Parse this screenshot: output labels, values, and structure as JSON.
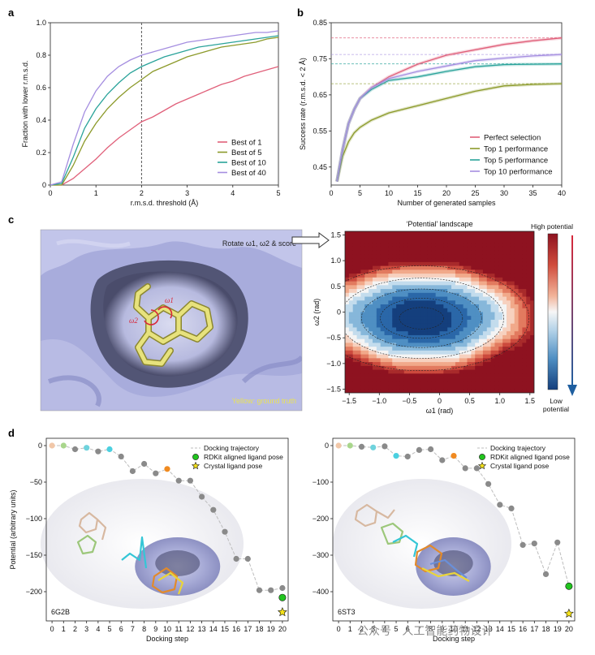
{
  "panels": {
    "a": "a",
    "b": "b",
    "c": "c",
    "d": "d"
  },
  "chart_data": [
    {
      "id": "a",
      "type": "line",
      "xlabel": "r.m.s.d. threshold (Å)",
      "ylabel": "Fraction with lower r.m.s.d.",
      "xlim": [
        0,
        5
      ],
      "ylim": [
        0,
        1.0
      ],
      "xticks": [
        "0",
        "1",
        "2",
        "3",
        "4",
        "5"
      ],
      "yticks": [
        "0",
        "0.2",
        "0.4",
        "0.6",
        "0.8",
        "1.0"
      ],
      "vline": 2,
      "legend_position": "bottom-right",
      "series": [
        {
          "name": "Best of 1",
          "color": "#e0607a",
          "x": [
            0,
            0.25,
            0.5,
            0.75,
            1.0,
            1.25,
            1.5,
            1.75,
            2.0,
            2.25,
            2.5,
            2.75,
            3.0,
            3.25,
            3.5,
            3.75,
            4.0,
            4.25,
            4.5,
            4.75,
            5.0
          ],
          "values": [
            0,
            0.0,
            0.04,
            0.1,
            0.16,
            0.23,
            0.29,
            0.34,
            0.39,
            0.42,
            0.46,
            0.5,
            0.53,
            0.56,
            0.59,
            0.62,
            0.64,
            0.67,
            0.69,
            0.71,
            0.73
          ]
        },
        {
          "name": "Best of 5",
          "color": "#8c9a2a",
          "x": [
            0,
            0.25,
            0.5,
            0.75,
            1.0,
            1.25,
            1.5,
            1.75,
            2.0,
            2.25,
            2.5,
            2.75,
            3.0,
            3.25,
            3.5,
            3.75,
            4.0,
            4.25,
            4.5,
            4.75,
            5.0
          ],
          "values": [
            0,
            0.0,
            0.12,
            0.27,
            0.38,
            0.47,
            0.54,
            0.6,
            0.65,
            0.7,
            0.73,
            0.76,
            0.79,
            0.81,
            0.83,
            0.85,
            0.86,
            0.87,
            0.88,
            0.9,
            0.91
          ]
        },
        {
          "name": "Best of 10",
          "color": "#2aa39a",
          "x": [
            0,
            0.25,
            0.5,
            0.75,
            1.0,
            1.25,
            1.5,
            1.75,
            2.0,
            2.25,
            2.5,
            2.75,
            3.0,
            3.25,
            3.5,
            3.75,
            4.0,
            4.25,
            4.5,
            4.75,
            5.0
          ],
          "values": [
            0,
            0.01,
            0.17,
            0.35,
            0.47,
            0.56,
            0.63,
            0.69,
            0.73,
            0.76,
            0.79,
            0.81,
            0.83,
            0.85,
            0.86,
            0.87,
            0.88,
            0.89,
            0.9,
            0.91,
            0.92
          ]
        },
        {
          "name": "Best of 40",
          "color": "#a58ee0",
          "x": [
            0,
            0.25,
            0.5,
            0.75,
            1.0,
            1.25,
            1.5,
            1.75,
            2.0,
            2.25,
            2.5,
            2.75,
            3.0,
            3.25,
            3.5,
            3.75,
            4.0,
            4.25,
            4.5,
            4.75,
            5.0
          ],
          "values": [
            0,
            0.02,
            0.25,
            0.45,
            0.58,
            0.67,
            0.73,
            0.77,
            0.8,
            0.82,
            0.84,
            0.86,
            0.88,
            0.89,
            0.9,
            0.91,
            0.92,
            0.93,
            0.94,
            0.94,
            0.95
          ]
        }
      ]
    },
    {
      "id": "b",
      "type": "line",
      "xlabel": "Number of generated samples",
      "ylabel": "Success rate (r.m.s.d. < 2 Å)",
      "xlim": [
        0,
        40
      ],
      "ylim": [
        0.4,
        0.85
      ],
      "xticks": [
        "0",
        "5",
        "10",
        "15",
        "20",
        "25",
        "30",
        "35",
        "40"
      ],
      "yticks": [
        "0.45",
        "0.55",
        "0.65",
        "0.75",
        "0.85"
      ],
      "hlines": [
        {
          "y": 0.808,
          "color": "#e0607a"
        },
        {
          "y": 0.762,
          "color": "#a58ee0"
        },
        {
          "y": 0.736,
          "color": "#2aa39a"
        },
        {
          "y": 0.681,
          "color": "#8c9a2a"
        }
      ],
      "legend_position": "bottom-right",
      "series": [
        {
          "name": "Perfect selection",
          "color": "#e0607a",
          "x": [
            1,
            2,
            3,
            4,
            5,
            7,
            10,
            15,
            20,
            25,
            30,
            35,
            40
          ],
          "values": [
            0.41,
            0.5,
            0.57,
            0.61,
            0.64,
            0.67,
            0.7,
            0.735,
            0.76,
            0.775,
            0.79,
            0.8,
            0.808
          ]
        },
        {
          "name": "Top 1 performance",
          "color": "#8c9a2a",
          "x": [
            1,
            2,
            3,
            4,
            5,
            7,
            10,
            15,
            20,
            25,
            30,
            35,
            40
          ],
          "values": [
            0.41,
            0.48,
            0.52,
            0.545,
            0.56,
            0.58,
            0.6,
            0.62,
            0.64,
            0.66,
            0.675,
            0.679,
            0.681
          ]
        },
        {
          "name": "Top 5 performance",
          "color": "#2aa39a",
          "x": [
            1,
            2,
            3,
            4,
            5,
            7,
            10,
            15,
            20,
            25,
            30,
            35,
            40
          ],
          "values": [
            0.41,
            0.5,
            0.57,
            0.61,
            0.64,
            0.665,
            0.69,
            0.7,
            0.715,
            0.728,
            0.734,
            0.735,
            0.736
          ]
        },
        {
          "name": "Top 10 performance",
          "color": "#a58ee0",
          "x": [
            1,
            2,
            3,
            4,
            5,
            7,
            10,
            15,
            20,
            25,
            30,
            35,
            40
          ],
          "values": [
            0.41,
            0.5,
            0.57,
            0.61,
            0.64,
            0.67,
            0.695,
            0.715,
            0.73,
            0.745,
            0.752,
            0.758,
            0.762
          ]
        }
      ]
    },
    {
      "id": "c",
      "type": "heatmap",
      "title": "‘Potential’ landscape",
      "xlabel": "ω1 (rad)",
      "ylabel": "ω2 (rad)",
      "xlim": [
        -1.57,
        1.57
      ],
      "ylim": [
        -1.57,
        1.57
      ],
      "xticks": [
        "−1.5",
        "−1.0",
        "−0.5",
        "0",
        "0.5",
        "1.0",
        "1.5"
      ],
      "yticks": [
        "1.5",
        "1.0",
        "0.5",
        "0",
        "−0.5",
        "−1.0",
        "−1.5"
      ],
      "colorbar_top": "High potential",
      "colorbar_bottom": "Low potential",
      "minimum": {
        "x": -0.3,
        "y": -0.12
      }
    },
    {
      "id": "d-left",
      "type": "scatter",
      "xlabel": "Docking step",
      "ylabel": "Potential (arbitrary units)",
      "xlim": [
        -0.5,
        20.5
      ],
      "ylim": [
        -240,
        10
      ],
      "xticks": [
        "0",
        "1",
        "2",
        "3",
        "4",
        "5",
        "6",
        "7",
        "8",
        "9",
        "10",
        "11",
        "12",
        "13",
        "14",
        "15",
        "16",
        "17",
        "18",
        "19",
        "20"
      ],
      "yticks": [
        "0",
        "−50",
        "−100",
        "−150",
        "−200"
      ],
      "legend_position": "top-right",
      "legend": [
        "Docking trajectory",
        "RDKit aligned ligand pose",
        "Crystal ligand pose"
      ],
      "label": "6G2B",
      "series": [
        {
          "name": "Docking trajectory",
          "x": [
            0,
            1,
            2,
            3,
            4,
            5,
            6,
            7,
            8,
            9,
            10,
            11,
            12,
            13,
            14,
            15,
            16,
            17,
            18,
            19,
            20
          ],
          "values": [
            0,
            0,
            -5,
            -3,
            -8,
            -5,
            -15,
            -35,
            -25,
            -38,
            -32,
            -48,
            -48,
            -70,
            -88,
            -118,
            -155,
            -155,
            -198,
            -198,
            -195
          ]
        },
        {
          "name": "RDKit aligned ligand pose",
          "x": [
            20
          ],
          "values": [
            -208
          ]
        },
        {
          "name": "Crystal ligand pose",
          "x": [
            20
          ],
          "values": [
            -228
          ]
        }
      ]
    },
    {
      "id": "d-right",
      "type": "scatter",
      "xlabel": "Docking step",
      "ylabel": "",
      "xlim": [
        -0.5,
        20.5
      ],
      "ylim": [
        -480,
        20
      ],
      "xticks": [
        "0",
        "1",
        "2",
        "3",
        "4",
        "5",
        "6",
        "7",
        "8",
        "9",
        "10",
        "11",
        "12",
        "13",
        "14",
        "15",
        "16",
        "17",
        "18",
        "19",
        "20"
      ],
      "yticks": [
        "0",
        "−100",
        "−200",
        "−300",
        "−400"
      ],
      "legend_position": "top-right",
      "legend": [
        "Docking trajectory",
        "RDKit aligned ligand pose",
        "Crystal ligand pose"
      ],
      "label": "6ST3",
      "series": [
        {
          "name": "Docking trajectory",
          "x": [
            0,
            1,
            2,
            3,
            4,
            5,
            6,
            7,
            8,
            9,
            10,
            11,
            12,
            13,
            14,
            15,
            16,
            17,
            18,
            19,
            20
          ],
          "values": [
            0,
            0,
            -3,
            -5,
            -2,
            -28,
            -30,
            -12,
            -10,
            -40,
            -28,
            -62,
            -62,
            -105,
            -162,
            -172,
            -272,
            -268,
            -352,
            -265,
            -385
          ]
        },
        {
          "name": "RDKit aligned ligand pose",
          "x": [
            20
          ],
          "values": [
            -385
          ]
        },
        {
          "name": "Crystal ligand pose",
          "x": [
            20
          ],
          "values": [
            -460
          ]
        }
      ]
    }
  ],
  "panel_c": {
    "caption_rotate": "Rotate ω1, ω2 & score",
    "caption_yellow": "Yellow: ground truth",
    "omega1": "ω1",
    "omega2": "ω2"
  },
  "watermark": "公众号 · 人工智能药物设计",
  "colors": {
    "struct_bg": "#a9aedd",
    "ligand": "#e6e07a",
    "accent_red": "#d8283a",
    "blue_low": "#1f5fa0",
    "red_high": "#9b1b22"
  }
}
